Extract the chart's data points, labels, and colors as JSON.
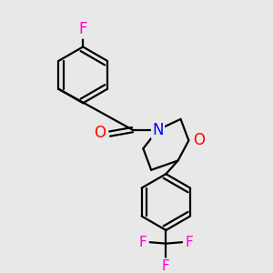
{
  "bg_color": "#e8e8e8",
  "bond_color": "#000000",
  "atom_colors": {
    "F": "#ff00cc",
    "O": "#ff0000",
    "N": "#0000ff"
  },
  "bond_width": 1.6,
  "figsize": [
    3.0,
    3.0
  ],
  "dpi": 100
}
